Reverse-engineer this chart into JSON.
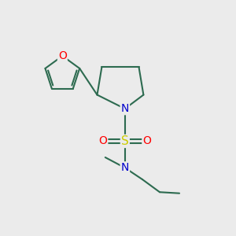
{
  "background_color": "#ebebeb",
  "bond_color": "#2d6b50",
  "atom_colors": {
    "O": "#ff0000",
    "N": "#0000cc",
    "S": "#cccc00"
  },
  "font_size": 10,
  "figsize": [
    3.0,
    3.0
  ],
  "dpi": 100,
  "xlim": [
    0,
    10
  ],
  "ylim": [
    0,
    10
  ]
}
